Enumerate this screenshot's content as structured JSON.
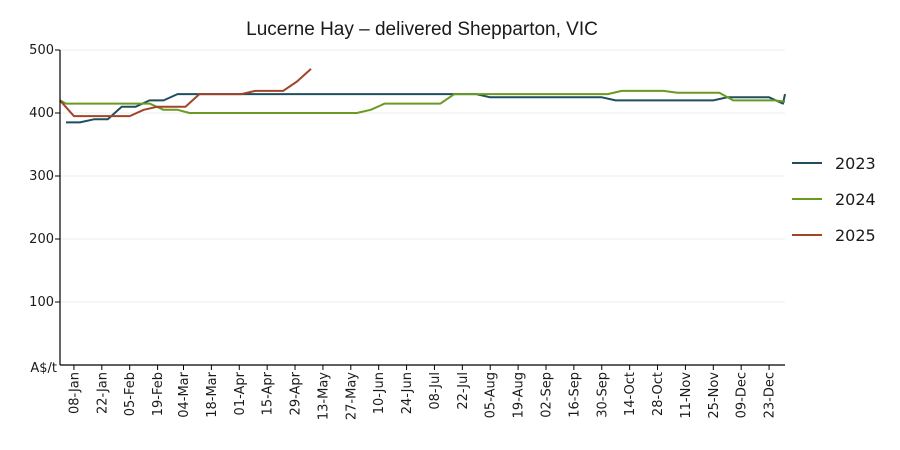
{
  "chart_data": {
    "type": "line",
    "title": "Lucerne Hay – delivered Shepparton, VIC",
    "ylabel": "A$/t",
    "xlabel": "",
    "ylim": [
      0,
      500
    ],
    "yticks": [
      100,
      200,
      300,
      400,
      500
    ],
    "xlim": [
      "01-Jan",
      "31-Dec"
    ],
    "xticks": [
      "08-Jan",
      "22-Jan",
      "05-Feb",
      "19-Feb",
      "04-Mar",
      "18-Mar",
      "01-Apr",
      "15-Apr",
      "29-Apr",
      "13-May",
      "27-May",
      "10-Jun",
      "24-Jun",
      "08-Jul",
      "22-Jul",
      "05-Aug",
      "19-Aug",
      "02-Sep",
      "16-Sep",
      "30-Sep",
      "14-Oct",
      "28-Oct",
      "11-Nov",
      "25-Nov",
      "09-Dec",
      "23-Dec"
    ],
    "grid": "horizontal",
    "legend_position": "right",
    "series": [
      {
        "name": "2023",
        "color": "#1f4e5f",
        "points": [
          [
            "04-Jan",
            385
          ],
          [
            "11-Jan",
            385
          ],
          [
            "18-Jan",
            390
          ],
          [
            "25-Jan",
            390
          ],
          [
            "01-Feb",
            410
          ],
          [
            "08-Feb",
            410
          ],
          [
            "15-Feb",
            420
          ],
          [
            "22-Feb",
            420
          ],
          [
            "01-Mar",
            430
          ],
          [
            "08-Mar",
            430
          ],
          [
            "31-Dec",
            430
          ],
          [
            "22-Jul",
            430
          ],
          [
            "29-Jul",
            430
          ],
          [
            "05-Aug",
            425
          ],
          [
            "30-Sep",
            425
          ],
          [
            "07-Oct",
            420
          ],
          [
            "18-Nov",
            420
          ],
          [
            "25-Nov",
            420
          ],
          [
            "02-Dec",
            425
          ],
          [
            "23-Dec",
            425
          ],
          [
            "30-Dec",
            415
          ]
        ]
      },
      {
        "name": "2024",
        "color": "#6a9a1f",
        "points": [
          [
            "01-Jan",
            420
          ],
          [
            "04-Jan",
            415
          ],
          [
            "15-Feb",
            415
          ],
          [
            "22-Feb",
            405
          ],
          [
            "29-Feb",
            405
          ],
          [
            "07-Mar",
            400
          ],
          [
            "23-May",
            400
          ],
          [
            "30-May",
            400
          ],
          [
            "06-Jun",
            405
          ],
          [
            "13-Jun",
            415
          ],
          [
            "11-Jul",
            415
          ],
          [
            "18-Jul",
            430
          ],
          [
            "26-Sep",
            430
          ],
          [
            "03-Oct",
            430
          ],
          [
            "10-Oct",
            435
          ],
          [
            "24-Oct",
            435
          ],
          [
            "31-Oct",
            435
          ],
          [
            "07-Nov",
            432
          ],
          [
            "28-Nov",
            432
          ],
          [
            "05-Dec",
            420
          ],
          [
            "26-Dec",
            420
          ],
          [
            "31-Dec",
            418
          ]
        ]
      },
      {
        "name": "2025",
        "color": "#a0442a",
        "points": [
          [
            "01-Jan",
            420
          ],
          [
            "08-Jan",
            395
          ],
          [
            "05-Feb",
            395
          ],
          [
            "12-Feb",
            405
          ],
          [
            "19-Feb",
            410
          ],
          [
            "05-Mar",
            410
          ],
          [
            "12-Mar",
            430
          ],
          [
            "02-Apr",
            430
          ],
          [
            "09-Apr",
            435
          ],
          [
            "23-Apr",
            435
          ],
          [
            "30-Apr",
            450
          ],
          [
            "07-May",
            470
          ]
        ]
      }
    ]
  }
}
